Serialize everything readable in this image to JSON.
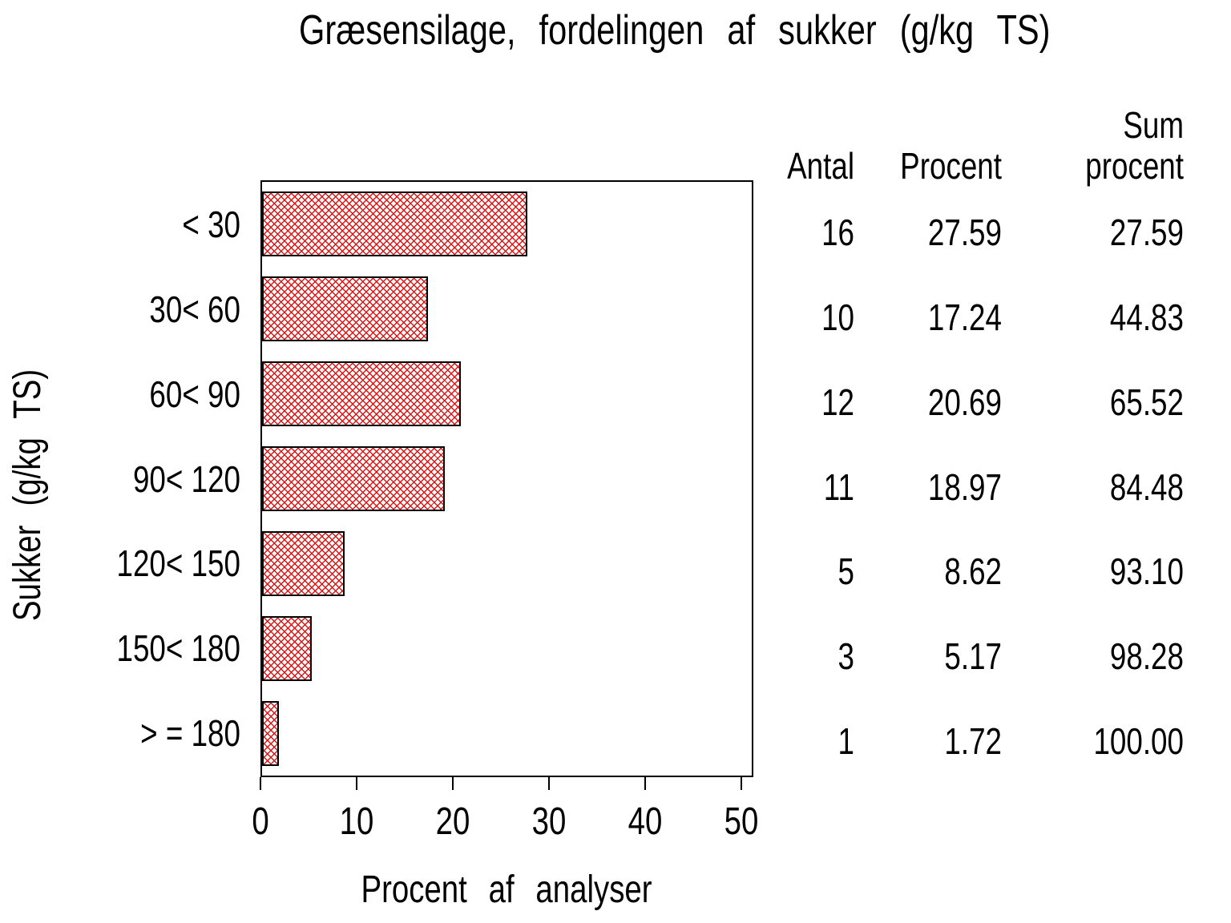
{
  "chart_data": {
    "type": "bar",
    "orientation": "horizontal",
    "title": "Græsensilage, fordelingen af sukker (g/kg TS)",
    "xlabel": "Procent af analyser",
    "ylabel": "Sukker (g/kg TS)",
    "categories": [
      "< 30",
      "30< 60",
      "60< 90",
      "90< 120",
      "120< 150",
      "150< 180",
      "> = 180"
    ],
    "values": [
      27.59,
      17.24,
      20.69,
      18.97,
      8.62,
      5.17,
      1.72
    ],
    "xlim": [
      0,
      50
    ],
    "xticks": [
      "0",
      "10",
      "20",
      "30",
      "40",
      "50"
    ],
    "grid": false,
    "legend": "none",
    "bar_fill_style": "crosshatch",
    "bar_color": "#dd1515",
    "bar_border_color": "#000000",
    "frame_color": "#000000",
    "background_color": "#ffffff"
  },
  "table": {
    "headers": {
      "antal": "Antal",
      "procent": "Procent",
      "sum_line1": "Sum",
      "sum_line2": "procent"
    },
    "rows": [
      {
        "antal": "16",
        "procent": "27.59",
        "sum": "27.59"
      },
      {
        "antal": "10",
        "procent": "17.24",
        "sum": "44.83"
      },
      {
        "antal": "12",
        "procent": "20.69",
        "sum": "65.52"
      },
      {
        "antal": "11",
        "procent": "18.97",
        "sum": "84.48"
      },
      {
        "antal": "5",
        "procent": "8.62",
        "sum": "93.10"
      },
      {
        "antal": "3",
        "procent": "5.17",
        "sum": "98.28"
      },
      {
        "antal": "1",
        "procent": "1.72",
        "sum": "100.00"
      }
    ]
  }
}
